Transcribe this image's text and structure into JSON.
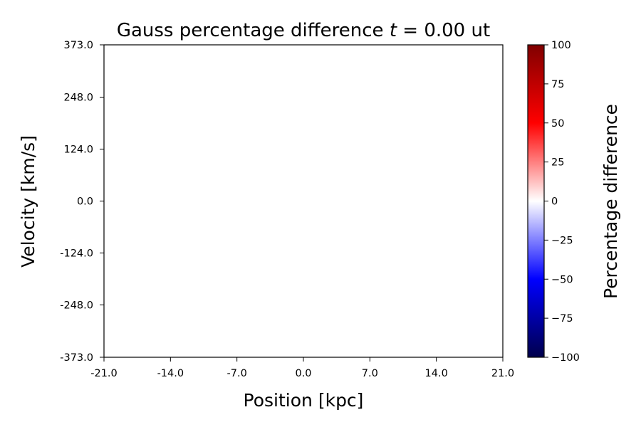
{
  "chart_data": {
    "type": "heatmap",
    "title_prefix": "Gauss percentage difference ",
    "title_var": "t",
    "title_suffix": " =  0.00 ut",
    "xlabel": "Position [kpc]",
    "ylabel": "Velocity [km/s]",
    "xlim": [
      -21.0,
      21.0
    ],
    "ylim": [
      -373.0,
      373.0
    ],
    "x_ticks": [
      -21.0,
      -14.0,
      -7.0,
      0.0,
      7.0,
      14.0,
      21.0
    ],
    "x_tick_labels": [
      "-21.0",
      "-14.0",
      "-7.0",
      "0.0",
      "7.0",
      "14.0",
      "21.0"
    ],
    "y_ticks": [
      -373.0,
      -248.0,
      -124.0,
      0.0,
      124.0,
      248.0,
      373.0
    ],
    "y_tick_labels": [
      "-373.0",
      "-248.0",
      "-124.0",
      "0.0",
      "124.0",
      "248.0",
      "373.0"
    ],
    "values": [],
    "colorbar": {
      "label": "Percentage difference",
      "colormap": "seismic",
      "range": [
        -100,
        100
      ],
      "ticks": [
        -100,
        -75,
        -50,
        -25,
        0,
        25,
        50,
        75,
        100
      ],
      "tick_labels": [
        "−100",
        "−75",
        "−50",
        "−25",
        "0",
        "25",
        "50",
        "75",
        "100"
      ],
      "color_stops": [
        "#00004c",
        "#0000ff",
        "#ffffff",
        "#ff0000",
        "#800000"
      ]
    },
    "grid": false
  }
}
